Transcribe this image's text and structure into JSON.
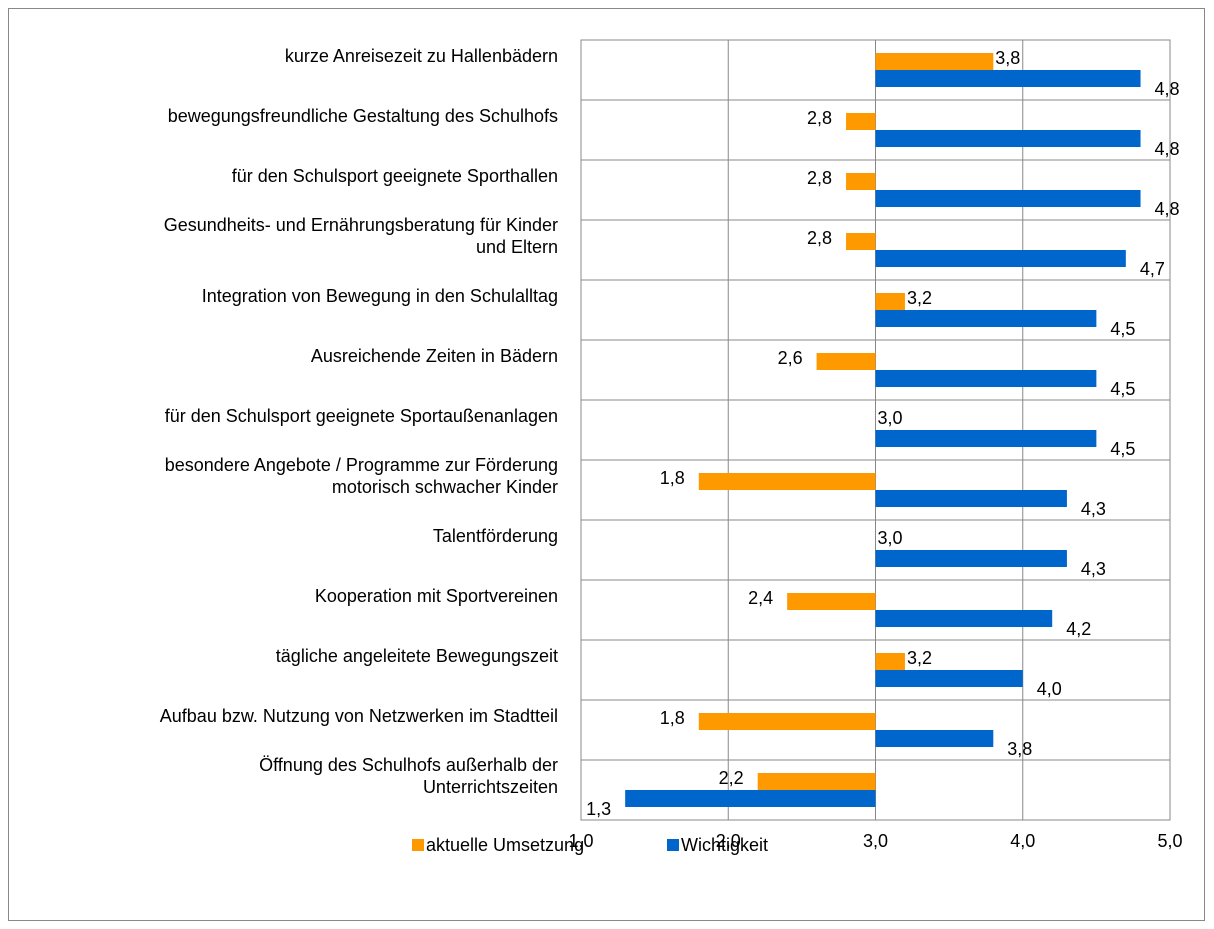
{
  "chart_data": {
    "type": "bar",
    "orientation": "horizontal",
    "base": 3.0,
    "categories": [
      "kurze Anreisezeit zu Hallenbädern",
      "bewegungsfreundliche Gestaltung des Schulhofs",
      "für den Schulsport geeignete Sporthallen",
      "Gesundheits- und Ernährungsberatung für Kinder\nund Eltern",
      "Integration von Bewegung in den Schulalltag",
      "Ausreichende Zeiten in Bädern",
      "für den Schulsport geeignete Sportaußenanlagen",
      "besondere Angebote / Programme zur Förderung\nmotorisch schwacher Kinder",
      "Talentförderung",
      "Kooperation mit Sportvereinen",
      "tägliche angeleitete Bewegungszeit",
      "Aufbau bzw. Nutzung von Netzwerken im Stadtteil",
      "Öffnung des Schulhofs außerhalb der\nUnterrichtszeiten"
    ],
    "series": [
      {
        "name": "aktuelle Umsetzung",
        "color": "#ff9900",
        "values": [
          3.8,
          2.8,
          2.8,
          2.8,
          3.2,
          2.6,
          3.0,
          1.8,
          3.0,
          2.4,
          3.2,
          1.8,
          2.2
        ],
        "value_labels": [
          "3,8",
          "2,8",
          "2,8",
          "2,8",
          "3,2",
          "2,6",
          "3,0",
          "1,8",
          "3,0",
          "2,4",
          "3,2",
          "1,8",
          "2,2"
        ]
      },
      {
        "name": "Wichtigkeit",
        "color": "#0066cc",
        "values": [
          4.8,
          4.8,
          4.8,
          4.7,
          4.5,
          4.5,
          4.5,
          4.3,
          4.3,
          4.2,
          4.0,
          3.8,
          1.3
        ],
        "value_labels": [
          "4,8",
          "4,8",
          "4,8",
          "4,7",
          "4,5",
          "4,5",
          "4,5",
          "4,3",
          "4,3",
          "4,2",
          "4,0",
          "3,8",
          "1,3"
        ]
      }
    ],
    "xlim": [
      1.0,
      5.0
    ],
    "xticks": [
      {
        "value": 1.0,
        "label": "1,0"
      },
      {
        "value": 2.0,
        "label": "2,0"
      },
      {
        "value": 3.0,
        "label": "3,0"
      },
      {
        "value": 4.0,
        "label": "4,0"
      },
      {
        "value": 5.0,
        "label": "5,0"
      }
    ],
    "grid": true,
    "legend": "bottom"
  }
}
